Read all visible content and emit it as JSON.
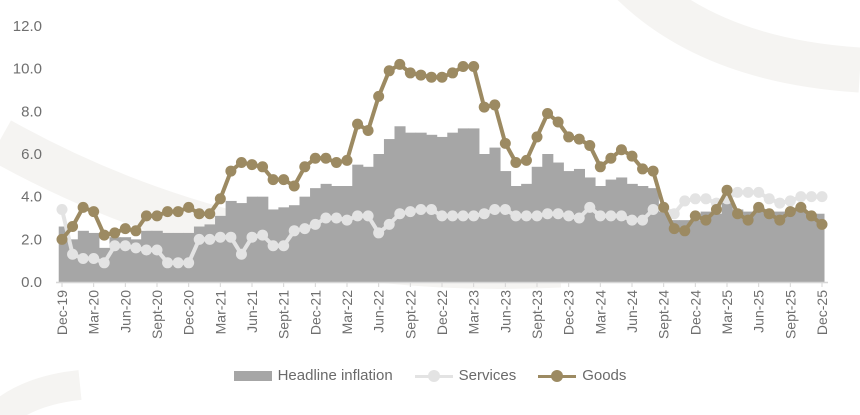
{
  "chart_data": {
    "type": "bar+line",
    "title": "",
    "xlabel": "",
    "ylabel": "",
    "ylim": [
      0,
      12
    ],
    "yticks": [
      "0.0",
      "2.0",
      "4.0",
      "6.0",
      "8.0",
      "10.0",
      "12.0"
    ],
    "grid": false,
    "legend_position": "bottom",
    "xtick_labels": [
      "Dec-19",
      "Mar-20",
      "Jun-20",
      "Sept-20",
      "Dec-20",
      "Mar-21",
      "Jun-21",
      "Sept-21",
      "Dec-21",
      "Mar-22",
      "Jun-22",
      "Sept-22",
      "Dec-22",
      "Mar-23",
      "Jun-23",
      "Sept-23",
      "Dec-23",
      "Mar-24",
      "Jun-24",
      "Sept-24",
      "Dec-24",
      "Mar-25",
      "Jun-25",
      "Sept-25",
      "Dec-25"
    ],
    "frequency": "monthly, Dec-19 to Dec-25 (73 points)",
    "series": [
      {
        "name": "Headline inflation",
        "kind": "bar",
        "color": "#a6a6a6",
        "values": [
          2.6,
          2.0,
          2.4,
          2.3,
          1.6,
          2.1,
          2.1,
          2.0,
          2.4,
          2.4,
          2.3,
          2.3,
          2.3,
          2.6,
          2.7,
          3.1,
          3.8,
          3.7,
          4.0,
          4.0,
          3.4,
          3.5,
          3.6,
          4.0,
          4.4,
          4.6,
          4.5,
          4.5,
          5.5,
          5.4,
          6.0,
          6.7,
          7.3,
          7.0,
          7.0,
          6.9,
          6.8,
          7.0,
          7.2,
          7.2,
          6.0,
          6.3,
          5.2,
          4.5,
          4.6,
          5.4,
          6.0,
          5.6,
          5.2,
          5.3,
          4.9,
          4.5,
          4.8,
          4.9,
          4.6,
          4.5,
          4.4,
          3.3,
          2.9,
          2.9,
          2.9,
          3.3,
          3.2,
          3.8,
          3.4,
          3.3,
          3.5,
          3.3,
          3.3,
          3.3,
          3.4,
          3.2,
          3.2
        ]
      },
      {
        "name": "Services",
        "kind": "line",
        "color": "#e3e3e3",
        "values": [
          3.4,
          1.3,
          1.1,
          1.1,
          0.9,
          1.7,
          1.7,
          1.6,
          1.5,
          1.5,
          0.9,
          0.9,
          0.9,
          2.0,
          2.0,
          2.1,
          2.1,
          1.3,
          2.1,
          2.2,
          1.7,
          1.7,
          2.4,
          2.5,
          2.7,
          3.0,
          3.0,
          2.9,
          3.1,
          3.1,
          2.3,
          2.7,
          3.2,
          3.3,
          3.4,
          3.4,
          3.1,
          3.1,
          3.1,
          3.1,
          3.2,
          3.4,
          3.4,
          3.1,
          3.1,
          3.1,
          3.2,
          3.2,
          3.1,
          3.0,
          3.5,
          3.1,
          3.1,
          3.1,
          2.9,
          2.9,
          3.4,
          3.5,
          3.2,
          3.8,
          3.9,
          3.9,
          3.7,
          3.9,
          4.2,
          4.2,
          4.2,
          3.9,
          3.7,
          3.8,
          4.0,
          4.0,
          4.0
        ]
      },
      {
        "name": "Goods",
        "kind": "line",
        "color": "#9c8a62",
        "values": [
          2.0,
          2.6,
          3.5,
          3.3,
          2.2,
          2.3,
          2.5,
          2.4,
          3.1,
          3.1,
          3.3,
          3.3,
          3.5,
          3.2,
          3.2,
          3.9,
          5.2,
          5.6,
          5.5,
          5.4,
          4.8,
          4.8,
          4.5,
          5.4,
          5.8,
          5.8,
          5.6,
          5.7,
          7.4,
          7.1,
          8.7,
          9.9,
          10.2,
          9.8,
          9.7,
          9.6,
          9.6,
          9.8,
          10.1,
          10.1,
          8.2,
          8.3,
          6.5,
          5.6,
          5.7,
          6.8,
          7.9,
          7.5,
          6.8,
          6.7,
          6.4,
          5.4,
          5.8,
          6.2,
          5.9,
          5.3,
          5.2,
          3.5,
          2.5,
          2.4,
          3.1,
          2.9,
          3.4,
          4.3,
          3.2,
          2.9,
          3.5,
          3.2,
          2.9,
          3.3,
          3.5,
          3.1,
          2.7
        ]
      }
    ]
  },
  "legend": {
    "items": [
      {
        "label": "Headline inflation",
        "type": "bar"
      },
      {
        "label": "Services",
        "type": "line-marker"
      },
      {
        "label": "Goods",
        "type": "line-marker"
      }
    ]
  },
  "colors": {
    "headline": "#a6a6a6",
    "services": "#e3e3e3",
    "goods": "#9c8a62",
    "axis_text": "#6f6f6f",
    "axis_line": "#d6d6d6",
    "background_arc": "#f4f3f1"
  }
}
